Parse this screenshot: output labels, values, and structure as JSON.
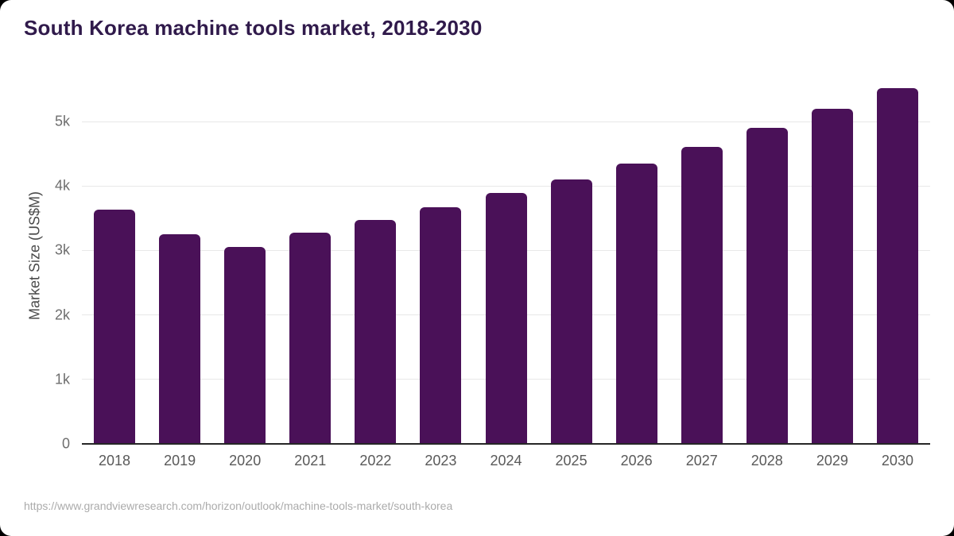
{
  "page": {
    "title": "South Korea machine tools market, 2018-2030",
    "source_url": "https://www.grandviewresearch.com/horizon/outlook/machine-tools-market/south-korea"
  },
  "chart_data": {
    "type": "bar",
    "title": "South Korea machine tools market, 2018-2030",
    "categories": [
      "2018",
      "2019",
      "2020",
      "2021",
      "2022",
      "2023",
      "2024",
      "2025",
      "2026",
      "2027",
      "2028",
      "2029",
      "2030"
    ],
    "series": [
      {
        "name": "Market Size (US$M)",
        "values": [
          3630,
          3250,
          3050,
          3280,
          3470,
          3670,
          3890,
          4100,
          4350,
          4610,
          4900,
          5200,
          5520
        ]
      }
    ],
    "xlabel": "",
    "ylabel": "Market Size (US$M)",
    "ylim": [
      0,
      5650
    ],
    "yticks": [
      {
        "value": 0,
        "label": "0"
      },
      {
        "value": 1000,
        "label": "1k"
      },
      {
        "value": 2000,
        "label": "2k"
      },
      {
        "value": 3000,
        "label": "3k"
      },
      {
        "value": 4000,
        "label": "4k"
      },
      {
        "value": 5000,
        "label": "5k"
      }
    ],
    "grid": "horizontal",
    "legend_position": "none"
  },
  "colors": {
    "bar": "#4a1158",
    "title_text": "#301a4b",
    "axis_text": "#6e6e6e",
    "x_label_text": "#595959",
    "gridline": "#e8e8e8",
    "axis_line": "#262626",
    "source_text": "#ababab",
    "background": "#ffffff"
  }
}
